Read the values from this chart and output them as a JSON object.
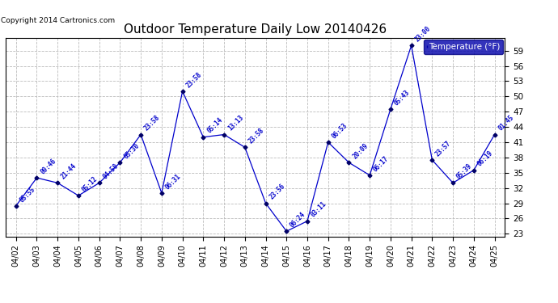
{
  "title": "Outdoor Temperature Daily Low 20140426",
  "copyright": "Copyright 2014 Cartronics.com",
  "legend_label": "Temperature (°F)",
  "ylim": [
    22.5,
    61.5
  ],
  "yticks": [
    23.0,
    26.0,
    29.0,
    32.0,
    35.0,
    38.0,
    41.0,
    44.0,
    47.0,
    50.0,
    53.0,
    56.0,
    59.0
  ],
  "dates": [
    "04/02",
    "04/03",
    "04/04",
    "04/05",
    "04/06",
    "04/07",
    "04/08",
    "04/09",
    "04/10",
    "04/11",
    "04/12",
    "04/13",
    "04/14",
    "04/15",
    "04/16",
    "04/17",
    "04/18",
    "04/19",
    "04/20",
    "04/21",
    "04/22",
    "04/23",
    "04/24",
    "04/25"
  ],
  "temps": [
    28.5,
    34.0,
    33.0,
    30.5,
    33.0,
    37.0,
    42.5,
    31.0,
    51.0,
    42.0,
    42.5,
    40.0,
    29.0,
    23.5,
    25.5,
    41.0,
    37.0,
    34.5,
    47.5,
    60.0,
    37.5,
    33.0,
    35.5,
    42.5
  ],
  "time_labels": [
    "05:55",
    "09:46",
    "21:44",
    "05:12",
    "04:50",
    "05:30",
    "23:58",
    "06:31",
    "23:58",
    "05:14",
    "13:13",
    "23:58",
    "23:56",
    "06:24",
    "03:11",
    "06:53",
    "20:09",
    "06:17",
    "05:43",
    "23:00",
    "23:57",
    "05:39",
    "06:19",
    "01:45"
  ],
  "line_color": "#0000cc",
  "marker_color": "#000066",
  "label_color": "#0000cc",
  "bg_color": "#ffffff",
  "grid_color": "#bbbbbb",
  "title_color": "#000000",
  "legend_bg": "#0000aa",
  "legend_fg": "#ffffff",
  "figsize": [
    6.9,
    3.75
  ],
  "dpi": 100
}
